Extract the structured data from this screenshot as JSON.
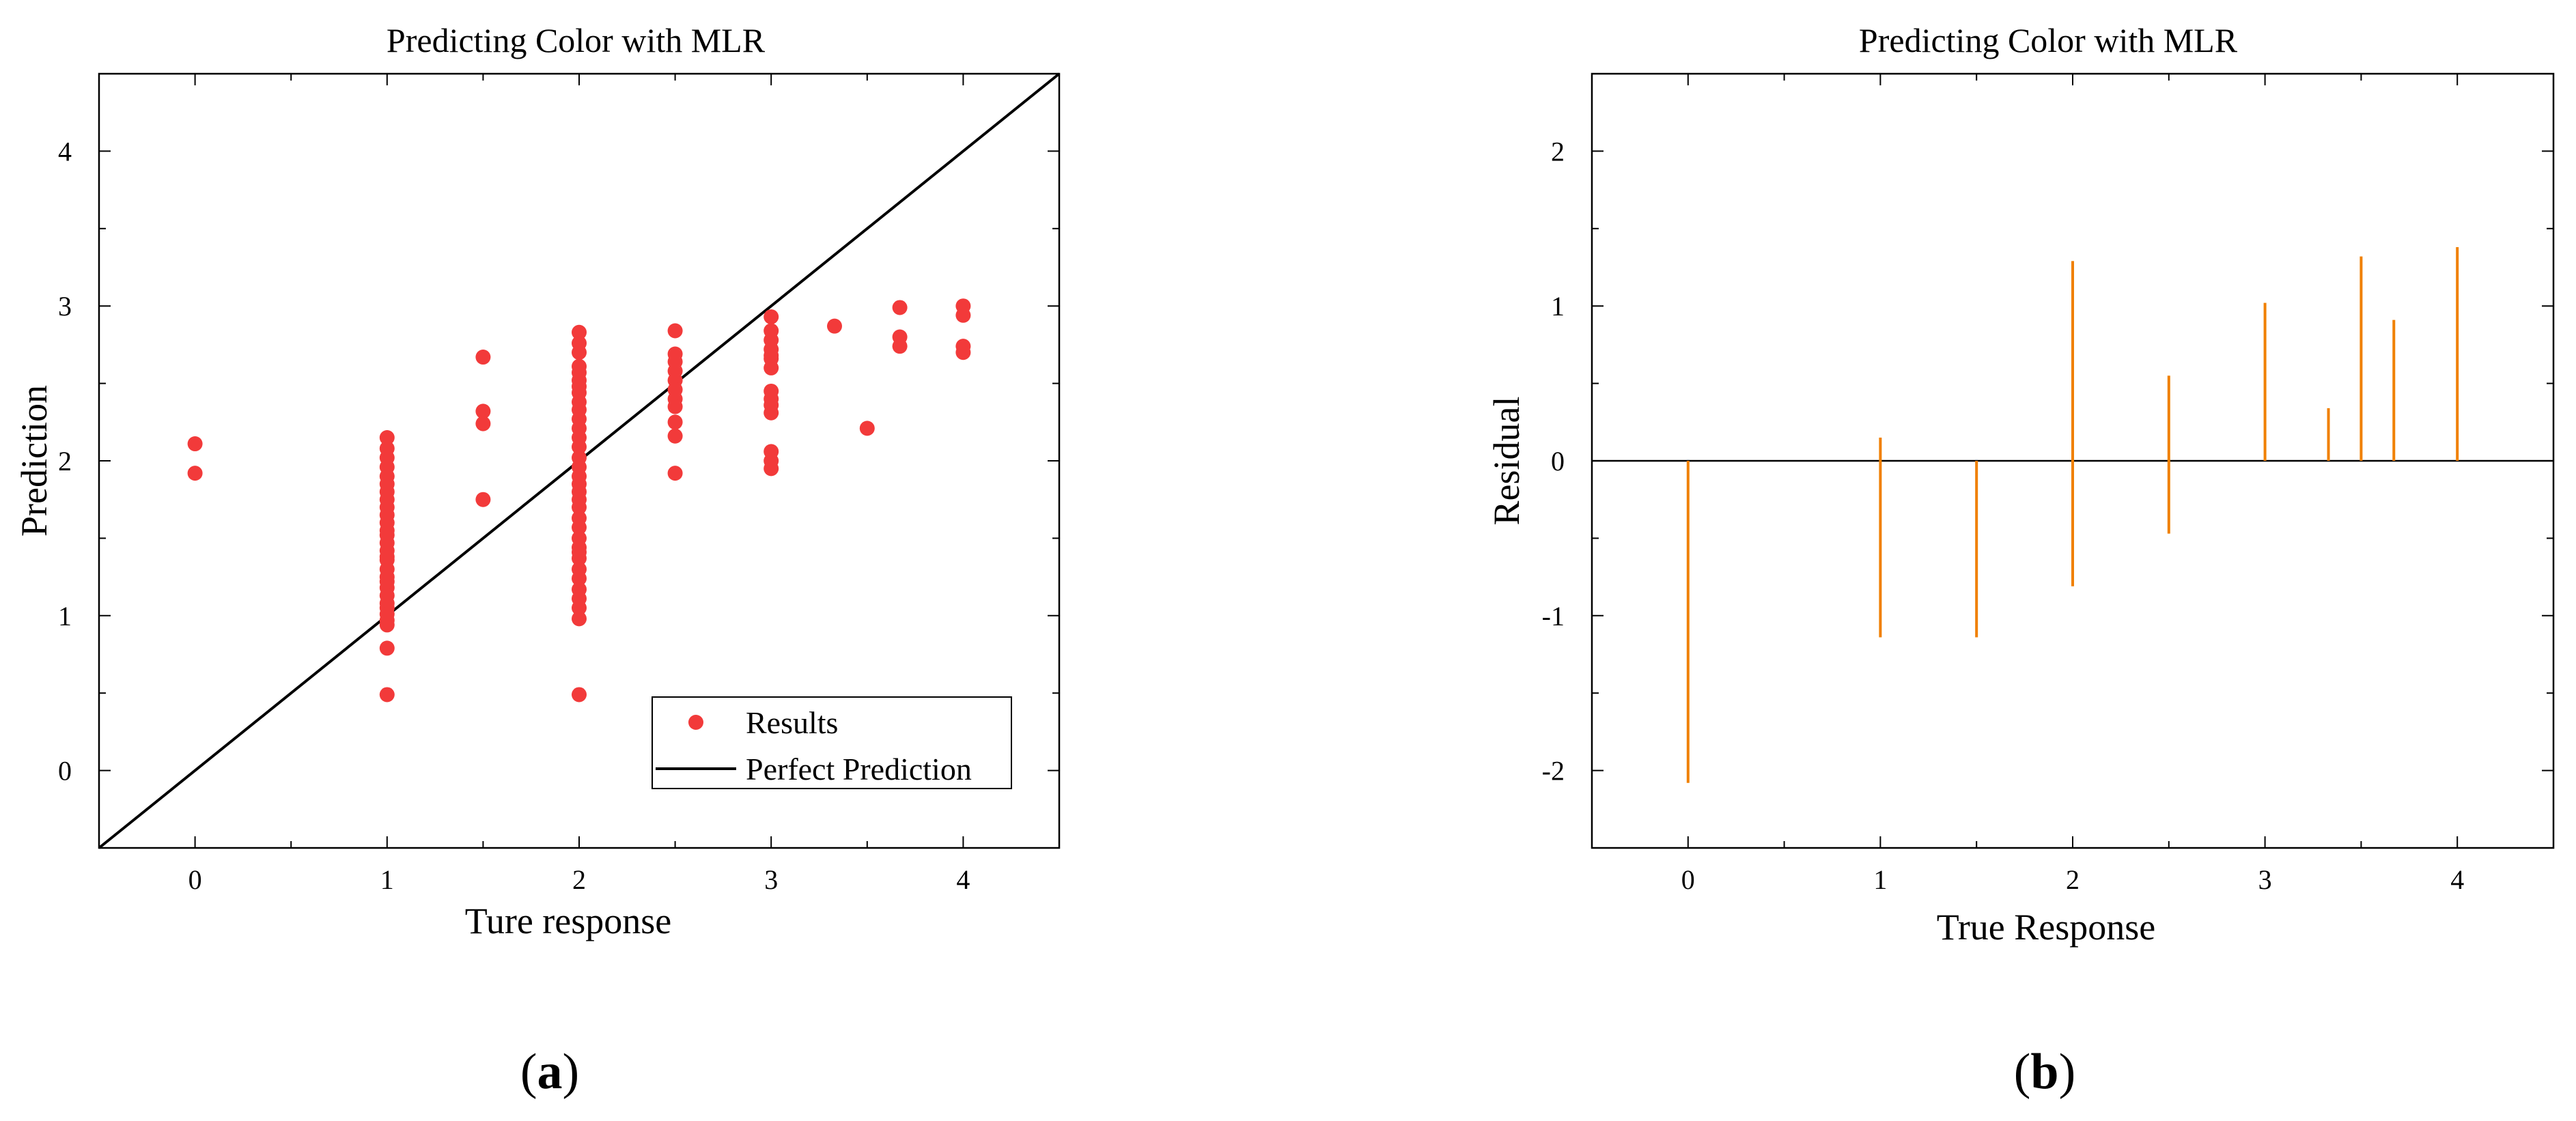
{
  "chart_data": [
    {
      "type": "scatter",
      "title": "Predicting Color with MLR",
      "xlabel": "Ture response",
      "ylabel": "Prediction",
      "xlim": [
        -0.5,
        4.5
      ],
      "ylim": [
        -0.5,
        4.5
      ],
      "xticks": [
        0,
        1,
        2,
        3,
        4
      ],
      "yticks": [
        0,
        1,
        2,
        3,
        4
      ],
      "legend": {
        "position": "bottom-right",
        "entries": [
          "Results",
          "Perfect Prediction"
        ]
      },
      "colors": {
        "points": "#f23a3a",
        "line": "#000000"
      },
      "panel_label": {
        "open": "(",
        "letter": "a",
        "close": ")"
      },
      "series": [
        {
          "name": "Results",
          "x": [
            0,
            0,
            1,
            1,
            1,
            1,
            1,
            1,
            1,
            1,
            1,
            1,
            1,
            1,
            1,
            1,
            1,
            1,
            1,
            1,
            1,
            1,
            1,
            1,
            1,
            1,
            1,
            1,
            1,
            1,
            1,
            1.5,
            1.5,
            1.5,
            1.5,
            2,
            2,
            2,
            2,
            2,
            2,
            2,
            2,
            2,
            2,
            2,
            2,
            2,
            2,
            2,
            2,
            2,
            2,
            2,
            2,
            2,
            2,
            2,
            2,
            2,
            2,
            2,
            2,
            2,
            2,
            2,
            2,
            2,
            2,
            2.5,
            2.5,
            2.5,
            2.5,
            2.5,
            2.5,
            2.5,
            2.5,
            2.5,
            2.5,
            2.5,
            3,
            3,
            3,
            3,
            3,
            3,
            3,
            3,
            3,
            3,
            3,
            3,
            3,
            3,
            3.33,
            3.5,
            3.67,
            3.67,
            3.67,
            4,
            4,
            4,
            4
          ],
          "y": [
            2.11,
            1.92,
            2.15,
            2.08,
            2.02,
            1.96,
            1.9,
            1.85,
            1.8,
            1.75,
            1.7,
            1.65,
            1.6,
            1.52,
            1.47,
            1.42,
            1.36,
            1.3,
            1.25,
            1.18,
            1.13,
            1.08,
            1.05,
            1.01,
            0.97,
            0.94,
            0.79,
            0.49,
            1.55,
            1.38,
            1.22,
            2.67,
            2.32,
            2.24,
            1.75,
            2.83,
            2.76,
            2.7,
            2.61,
            2.52,
            2.44,
            2.38,
            2.33,
            2.27,
            2.21,
            2.15,
            2.09,
            2.02,
            1.96,
            1.9,
            1.85,
            1.8,
            1.7,
            1.63,
            1.57,
            1.5,
            1.44,
            1.37,
            1.3,
            1.24,
            1.17,
            1.11,
            1.05,
            0.98,
            0.49,
            1.75,
            1.41,
            2.48,
            2.57,
            2.84,
            2.69,
            2.64,
            2.58,
            2.52,
            2.46,
            2.4,
            2.35,
            2.25,
            2.16,
            1.92,
            2.93,
            2.84,
            2.78,
            2.72,
            2.66,
            2.6,
            2.45,
            2.4,
            2.36,
            2.31,
            2.06,
            2.0,
            1.95,
            2.68,
            2.87,
            2.21,
            2.99,
            2.8,
            2.74,
            3.0,
            2.94,
            2.74,
            2.7
          ]
        },
        {
          "name": "Perfect Prediction",
          "x": [
            -0.5,
            4.5
          ],
          "y": [
            -0.5,
            4.5
          ]
        }
      ]
    },
    {
      "type": "bar",
      "title": "Predicting Color with MLR",
      "xlabel": "True Response",
      "ylabel": "Residual",
      "xlim": [
        -0.5,
        4.5
      ],
      "ylim": [
        -2.5,
        2.5
      ],
      "xticks": [
        0,
        1,
        2,
        3,
        4
      ],
      "yticks": [
        -2,
        -1,
        0,
        1,
        2
      ],
      "colors": {
        "bars": "#f08000",
        "baseline": "#000000"
      },
      "panel_label": {
        "open": "(",
        "letter": "b",
        "close": ")"
      },
      "series": [
        {
          "x": [
            0,
            1,
            1.5,
            2,
            2.5,
            3,
            3.33,
            3.5,
            3.67,
            4
          ],
          "ymin": [
            -2.08,
            -1.14,
            -1.14,
            -0.81,
            -0.47,
            0,
            0,
            0,
            0,
            0
          ],
          "ymax": [
            0,
            0.15,
            0,
            1.29,
            0.55,
            1.02,
            0.34,
            1.32,
            0.91,
            1.38
          ]
        }
      ]
    }
  ]
}
